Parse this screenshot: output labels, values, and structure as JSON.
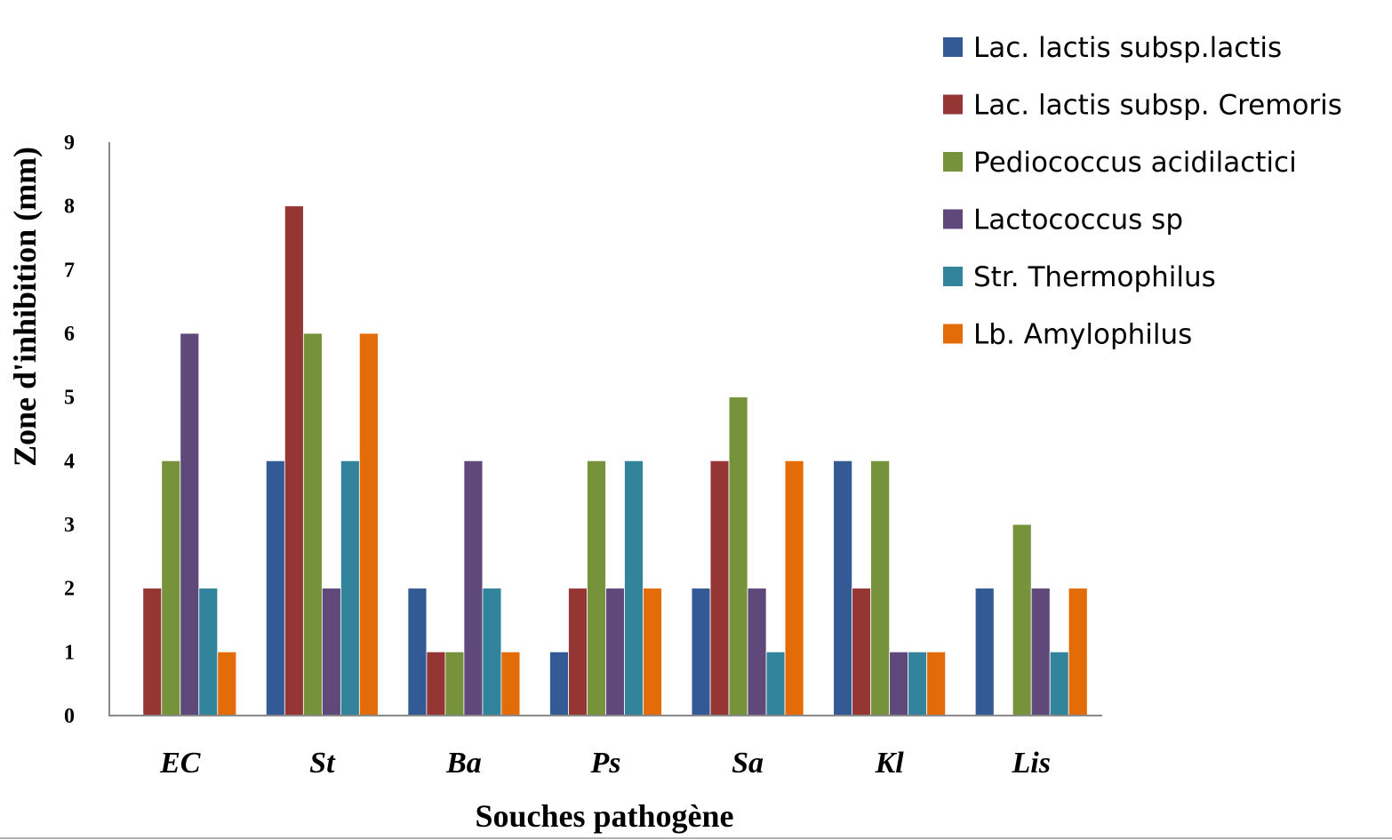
{
  "chart_data": {
    "type": "bar",
    "title": "",
    "xlabel": "Souches pathogène",
    "ylabel": "Zone d'inhibition (mm)",
    "ylim": [
      0,
      9
    ],
    "yticks": [
      "0",
      "1",
      "2",
      "3",
      "4",
      "5",
      "6",
      "7",
      "8",
      "9"
    ],
    "grid": false,
    "legend_position": "top-right",
    "categories": [
      "EC",
      "St",
      "Ba",
      "Ps",
      "Sa",
      "Kl",
      "Lis"
    ],
    "series": [
      {
        "name": "Lac. lactis subsp.lactis",
        "color": "#335a95",
        "values": [
          0,
          4,
          2,
          1,
          2,
          4,
          2
        ]
      },
      {
        "name": "Lac. lactis subsp. Cremoris",
        "color": "#963634",
        "values": [
          2,
          8,
          1,
          2,
          4,
          2,
          0
        ]
      },
      {
        "name": "Pediococcus acidilactici",
        "color": "#76923b",
        "values": [
          4,
          6,
          1,
          4,
          5,
          4,
          3
        ]
      },
      {
        "name": "Lactococcus sp",
        "color": "#5f497a",
        "values": [
          6,
          2,
          4,
          2,
          2,
          1,
          2
        ]
      },
      {
        "name": "Str. Thermophilus",
        "color": "#31849b",
        "values": [
          2,
          4,
          2,
          4,
          1,
          1,
          1
        ]
      },
      {
        "name": "Lb. Amylophilus",
        "color": "#e36c09",
        "values": [
          1,
          6,
          1,
          2,
          4,
          1,
          2
        ]
      }
    ]
  }
}
